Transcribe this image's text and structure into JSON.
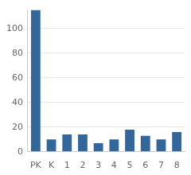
{
  "chart_data": {
    "type": "bar",
    "categories": [
      "PK",
      "K",
      "1",
      "2",
      "3",
      "4",
      "5",
      "6",
      "7",
      "8"
    ],
    "values": [
      115,
      10,
      14,
      14,
      7,
      10,
      18,
      13,
      10,
      16
    ],
    "color": "#336699",
    "ylim": [
      0,
      115
    ],
    "yticks": [
      0,
      20,
      40,
      60,
      80,
      100
    ],
    "grid": true
  }
}
